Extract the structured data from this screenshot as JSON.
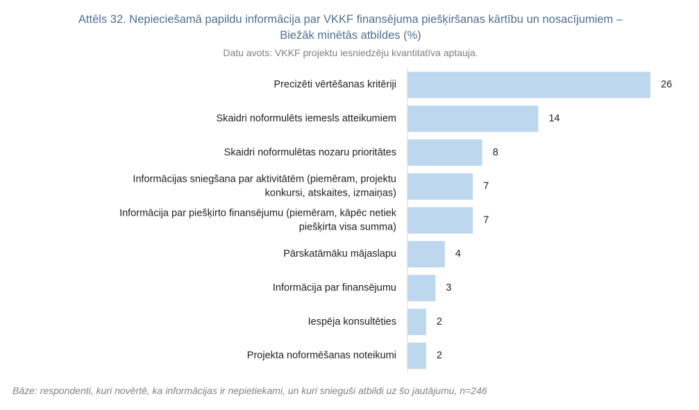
{
  "title_line1": "Attēls 32. Nepieciešamā papildu informācija par VKKF finansējuma piešķiršanas kārtību un nosacījumiem –",
  "title_line2": "Biežāk minētās atbildes (%)",
  "source": "Datu avots: VKKF projektu iesniedzēju kvantitatīva aptauja.",
  "note": "Bāze: respondenti, kuri novērtē, ka informācijas ir nepietiekami, un kuri snieguši atbildi uz šo jautājumu, n=246",
  "colors": {
    "bar": "#bdd7ee",
    "axis": "#d9d9d9",
    "title": "#4f6f8f",
    "muted": "#808080"
  },
  "chart_data": {
    "type": "bar",
    "orientation": "horizontal",
    "unit": "%",
    "categories": [
      [
        "Precizēti vērtēšanas kritēriji"
      ],
      [
        "Skaidri noformulēts iemesls atteikumiem"
      ],
      [
        "Skaidri noformulētas nozaru prioritātes"
      ],
      [
        "Informācijas sniegšana par aktivitātēm (piemēram, projektu",
        "konkursi, atskaites, izmaiņas)"
      ],
      [
        "Informācija par piešķirto finansējumu (piemēram, kāpēc netiek",
        "piešķirta visa summa)"
      ],
      [
        "Pārskatāmāku mājaslapu"
      ],
      [
        "Informācija par finansējumu"
      ],
      [
        "Iespēja konsultēties"
      ],
      [
        "Projekta noformēšanas noteikumi"
      ]
    ],
    "values": [
      26,
      14,
      8,
      7,
      7,
      4,
      3,
      2,
      2
    ],
    "data_labels": [
      "26",
      "14",
      "8",
      "7",
      "7",
      "4",
      "3",
      "2",
      "2"
    ],
    "xlim": [
      0,
      26
    ],
    "grid": false,
    "legend": "none"
  }
}
